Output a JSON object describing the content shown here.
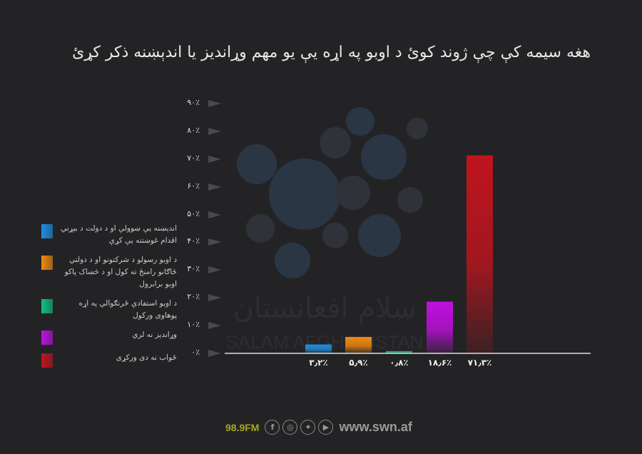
{
  "chart_data": {
    "type": "bar",
    "title": "هغه سیمه کې چې ژوند کوئ د اوبو په اړه یې یو مهم وړاندیز یا اندېښنه ذکر کړئ",
    "categories": [
      "اندېښنه یې ښوولې او د دولت د بېړني اقدام غوښتنه یې کړې",
      "د اوبو رسولو د شرکتونو او د دولتي ځاګانو رامنځ ته کول او د څښاک پاکو اوبو برابرول",
      "د اوبو استفادې ځرنګوالي په اړه پوهاوی ورکول",
      "وړاندیز نه لري",
      "ځواب نه دی ورکړی"
    ],
    "values": [
      3.2,
      5.9,
      0.8,
      18.6,
      71.3
    ],
    "value_labels": [
      "۳٫۲٪",
      "۵٫۹٪",
      "۰٫۸٪",
      "۱۸٫۶٪",
      "۷۱٫۳٪"
    ],
    "colors": [
      "#1e8fe0",
      "#f08a10",
      "#10c080",
      "#c010e0",
      "#c0141e"
    ],
    "ylim": [
      0,
      90
    ],
    "yticks": [
      0,
      10,
      20,
      30,
      40,
      50,
      60,
      70,
      80,
      90
    ],
    "ytick_labels": [
      "۰٪",
      "۱۰٪",
      "۲۰٪",
      "۳۰٪",
      "۴۰٪",
      "۵۰٪",
      "۶۰٪",
      "۷۰٪",
      "۸۰٪",
      "۹۰٪"
    ],
    "legend_placement": "left"
  },
  "footer": {
    "fm": "98.9FM",
    "social_icons": [
      "facebook-icon",
      "instagram-icon",
      "twitter-icon",
      "youtube-icon"
    ],
    "url": "www.swn.af"
  },
  "watermark": "سلام افغانستان SALAM AFGHANISTAN"
}
